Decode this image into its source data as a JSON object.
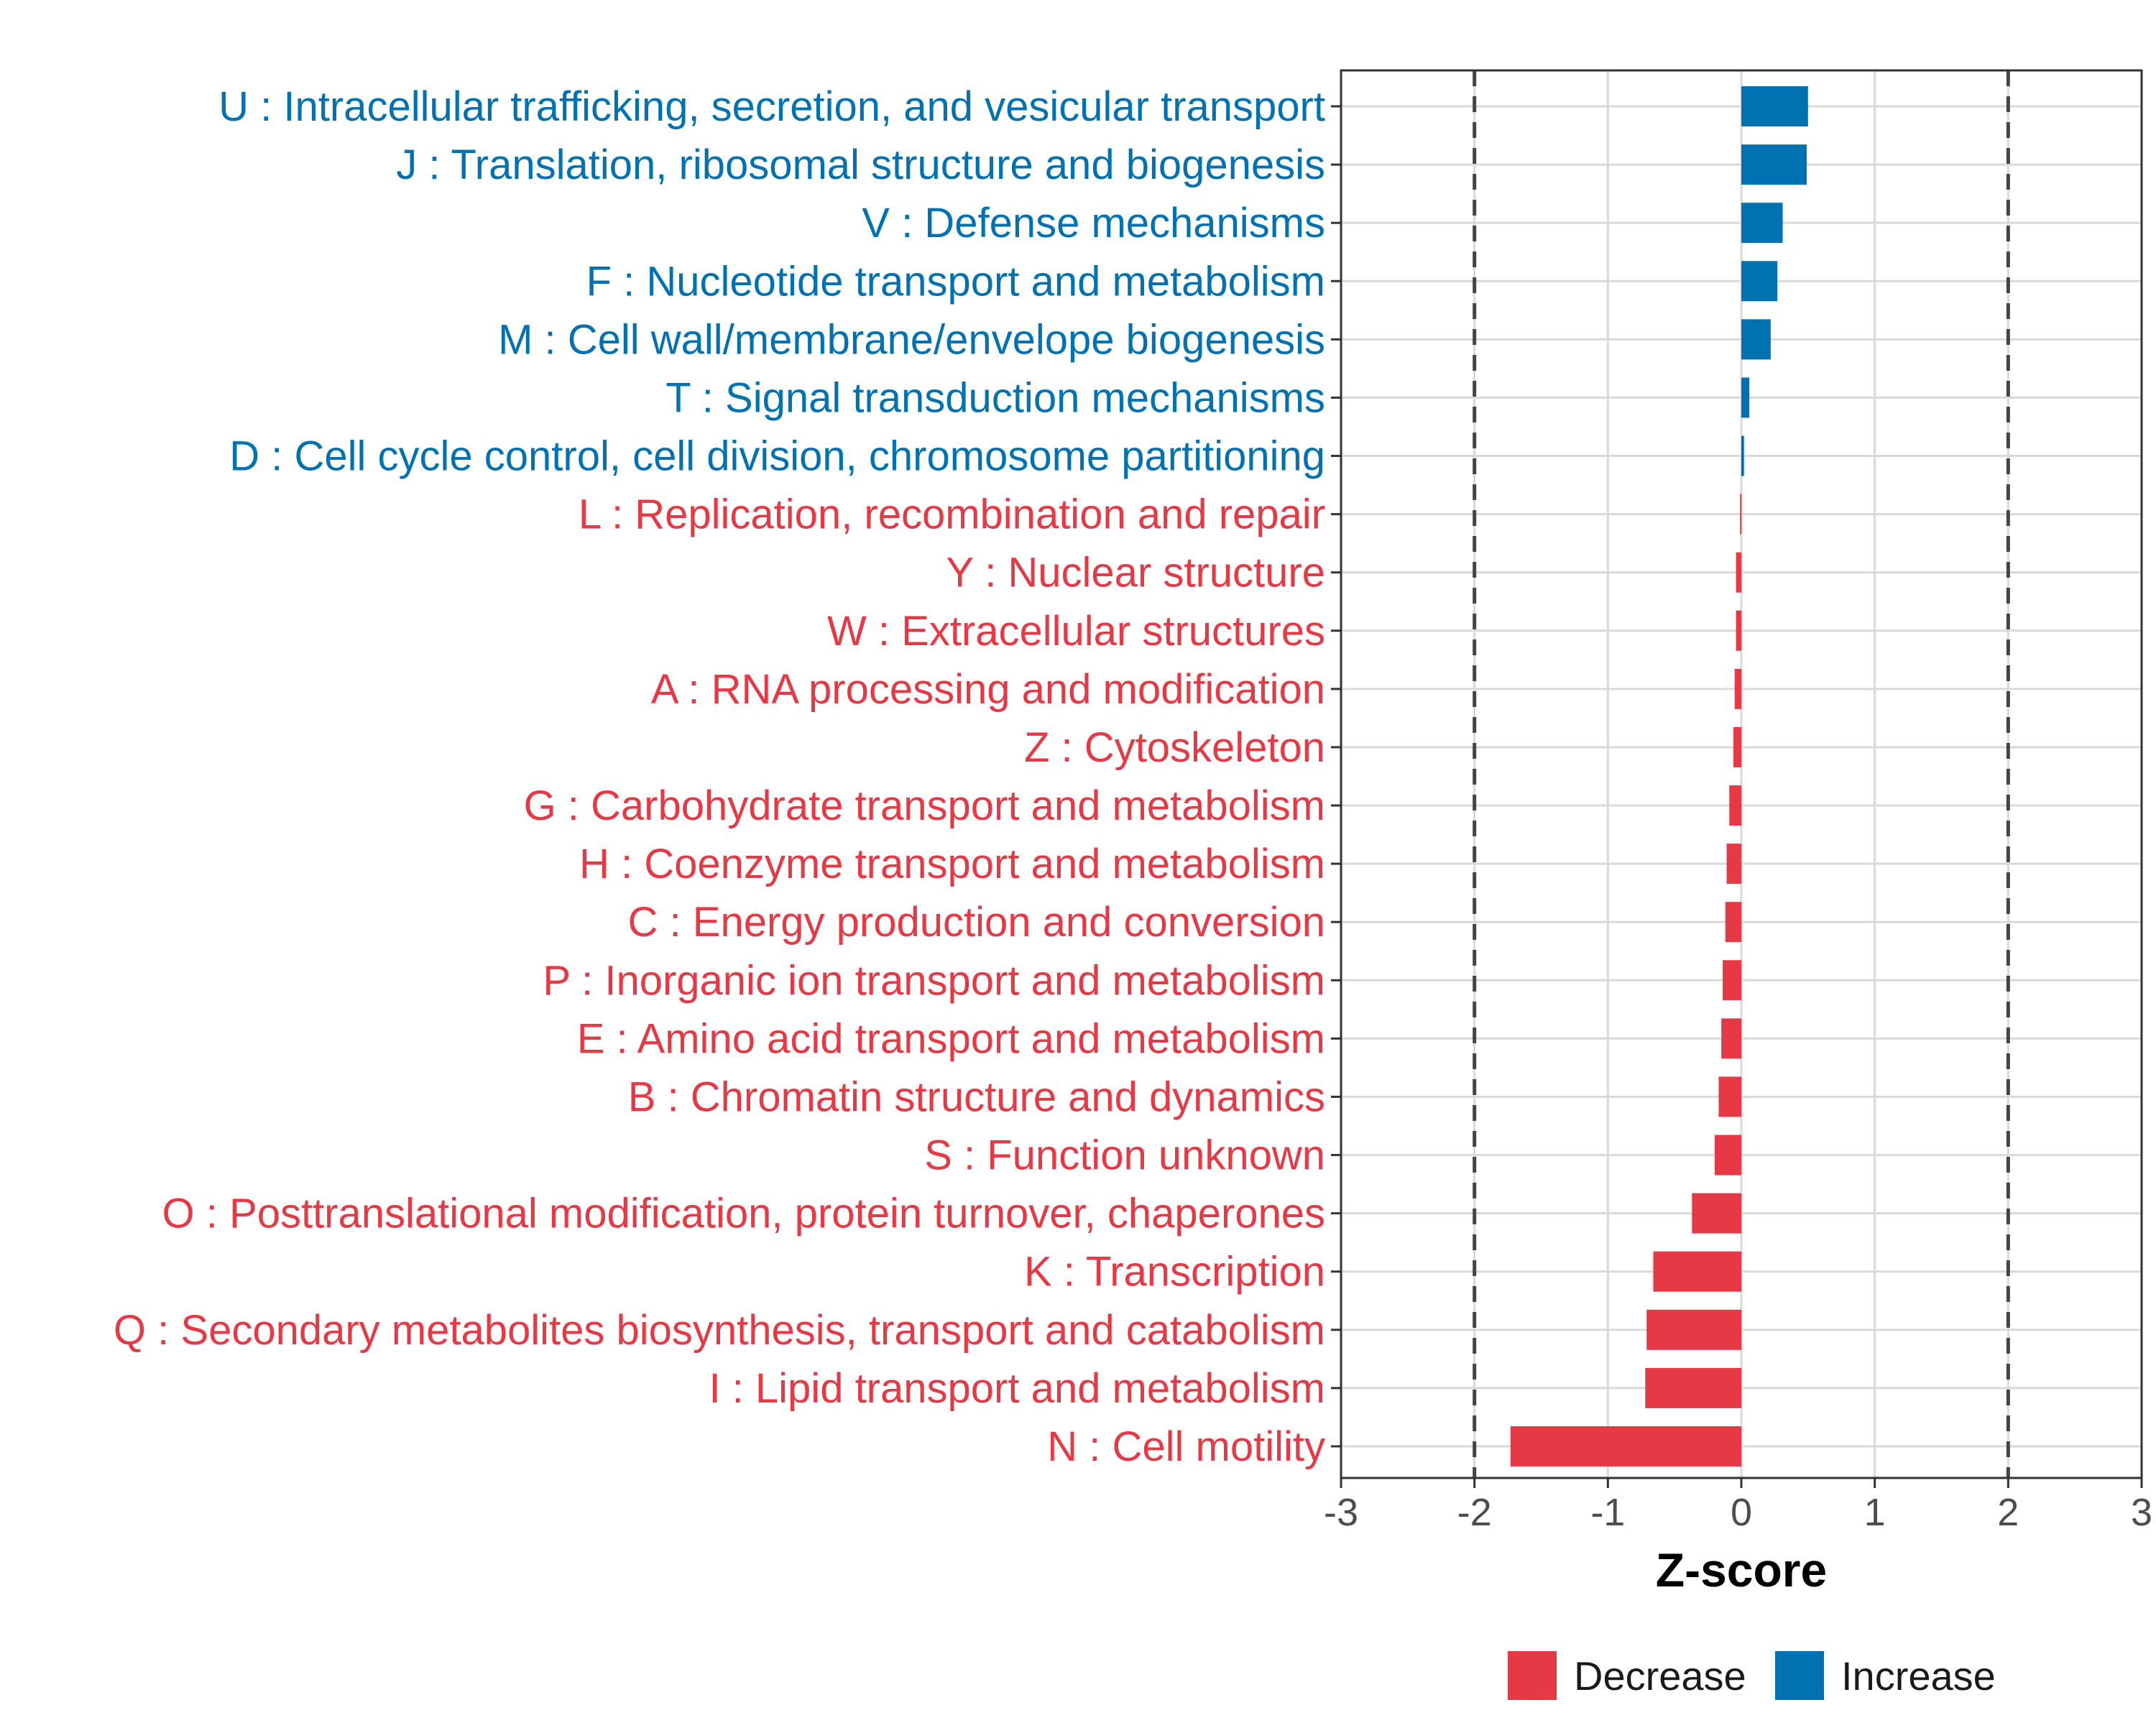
{
  "chart_data": {
    "type": "bar",
    "orientation": "horizontal",
    "title": "",
    "xlabel": "Z-score",
    "ylabel": "",
    "xlim": [
      -3,
      3
    ],
    "xticks": [
      -3,
      -2,
      -1,
      0,
      1,
      2,
      3
    ],
    "reference_lines": [
      -2,
      2
    ],
    "grid": true,
    "categories": [
      "U : Intracellular trafficking, secretion, and vesicular transport",
      "J : Translation, ribosomal structure and biogenesis",
      "V : Defense mechanisms",
      "F : Nucleotide transport and metabolism",
      "M : Cell wall/membrane/envelope biogenesis",
      "T : Signal transduction mechanisms",
      "D : Cell cycle control, cell division, chromosome partitioning",
      "L : Replication, recombination and repair",
      "Y : Nuclear structure",
      "W : Extracellular structures",
      "A : RNA processing and modification",
      "Z : Cytoskeleton",
      "G : Carbohydrate transport and metabolism",
      "H : Coenzyme transport and metabolism",
      "C : Energy production and conversion",
      "P : Inorganic ion transport and metabolism",
      "E : Amino acid transport and metabolism",
      "B : Chromatin structure and dynamics",
      "S : Function unknown",
      "O : Posttranslational modification, protein turnover, chaperones",
      "K : Transcription",
      "Q : Secondary metabolites biosynthesis, transport and catabolism",
      "I : Lipid transport and metabolism",
      "N : Cell motility"
    ],
    "values": [
      0.5,
      0.49,
      0.31,
      0.27,
      0.22,
      0.06,
      0.02,
      -0.01,
      -0.04,
      -0.04,
      -0.05,
      -0.06,
      -0.09,
      -0.11,
      -0.12,
      -0.14,
      -0.15,
      -0.17,
      -0.2,
      -0.37,
      -0.66,
      -0.71,
      -0.72,
      -1.73
    ],
    "groups": [
      "Increase",
      "Increase",
      "Increase",
      "Increase",
      "Increase",
      "Increase",
      "Increase",
      "Decrease",
      "Decrease",
      "Decrease",
      "Decrease",
      "Decrease",
      "Decrease",
      "Decrease",
      "Decrease",
      "Decrease",
      "Decrease",
      "Decrease",
      "Decrease",
      "Decrease",
      "Decrease",
      "Decrease",
      "Decrease",
      "Decrease"
    ],
    "legend": {
      "position": "bottom",
      "entries": [
        {
          "label": "Decrease",
          "color": "#E63946"
        },
        {
          "label": "Increase",
          "color": "#0072B2"
        }
      ]
    },
    "colors": {
      "Decrease": "#E63946",
      "Increase": "#0072B2",
      "grid": "#d9d9d9",
      "refline": "#444444",
      "axis": "#333333"
    }
  }
}
